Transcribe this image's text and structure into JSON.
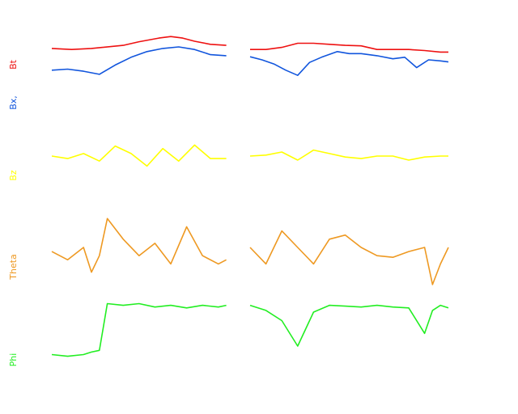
{
  "chart_data": {
    "type": "line",
    "panels": [
      {
        "series": [
          {
            "name": "Bt",
            "color": "#ee1111",
            "segments": [
              [
                [
                  0,
                  0.72
                ],
                [
                  0.05,
                  0.7
                ],
                [
                  0.1,
                  0.72
                ],
                [
                  0.18,
                  0.78
                ],
                [
                  0.22,
                  0.85
                ],
                [
                  0.27,
                  0.92
                ],
                [
                  0.3,
                  0.95
                ],
                [
                  0.33,
                  0.92
                ],
                [
                  0.36,
                  0.86
                ],
                [
                  0.4,
                  0.8
                ],
                [
                  0.44,
                  0.78
                ]
              ],
              [
                [
                  0.5,
                  0.7
                ],
                [
                  0.54,
                  0.7
                ],
                [
                  0.58,
                  0.74
                ],
                [
                  0.62,
                  0.82
                ],
                [
                  0.66,
                  0.82
                ],
                [
                  0.7,
                  0.8
                ],
                [
                  0.74,
                  0.78
                ],
                [
                  0.78,
                  0.77
                ],
                [
                  0.82,
                  0.7
                ],
                [
                  0.86,
                  0.7
                ],
                [
                  0.9,
                  0.7
                ],
                [
                  0.94,
                  0.68
                ],
                [
                  0.98,
                  0.65
                ],
                [
                  1.0,
                  0.65
                ]
              ]
            ]
          },
          {
            "name": "Bx,",
            "color": "#1155dd",
            "segments": [
              [
                [
                  0,
                  0.3
                ],
                [
                  0.04,
                  0.32
                ],
                [
                  0.08,
                  0.28
                ],
                [
                  0.12,
                  0.22
                ],
                [
                  0.16,
                  0.4
                ],
                [
                  0.2,
                  0.55
                ],
                [
                  0.24,
                  0.66
                ],
                [
                  0.28,
                  0.72
                ],
                [
                  0.32,
                  0.75
                ],
                [
                  0.36,
                  0.7
                ],
                [
                  0.4,
                  0.6
                ],
                [
                  0.44,
                  0.58
                ]
              ],
              [
                [
                  0.5,
                  0.56
                ],
                [
                  0.53,
                  0.5
                ],
                [
                  0.56,
                  0.42
                ],
                [
                  0.59,
                  0.3
                ],
                [
                  0.62,
                  0.2
                ],
                [
                  0.65,
                  0.45
                ],
                [
                  0.68,
                  0.55
                ],
                [
                  0.72,
                  0.66
                ],
                [
                  0.75,
                  0.62
                ],
                [
                  0.78,
                  0.62
                ],
                [
                  0.82,
                  0.58
                ],
                [
                  0.86,
                  0.52
                ],
                [
                  0.89,
                  0.55
                ],
                [
                  0.92,
                  0.35
                ],
                [
                  0.95,
                  0.5
                ],
                [
                  0.98,
                  0.48
                ],
                [
                  1.0,
                  0.46
                ]
              ]
            ]
          }
        ]
      },
      {
        "series": [
          {
            "name": "Bz",
            "color": "#ffff00",
            "segments": [
              [
                [
                  0,
                  0.5
                ],
                [
                  0.04,
                  0.45
                ],
                [
                  0.08,
                  0.55
                ],
                [
                  0.12,
                  0.4
                ],
                [
                  0.16,
                  0.7
                ],
                [
                  0.2,
                  0.55
                ],
                [
                  0.24,
                  0.3
                ],
                [
                  0.28,
                  0.65
                ],
                [
                  0.32,
                  0.4
                ],
                [
                  0.36,
                  0.72
                ],
                [
                  0.4,
                  0.45
                ],
                [
                  0.44,
                  0.45
                ]
              ],
              [
                [
                  0.5,
                  0.5
                ],
                [
                  0.54,
                  0.52
                ],
                [
                  0.58,
                  0.58
                ],
                [
                  0.62,
                  0.42
                ],
                [
                  0.66,
                  0.62
                ],
                [
                  0.7,
                  0.55
                ],
                [
                  0.74,
                  0.48
                ],
                [
                  0.78,
                  0.45
                ],
                [
                  0.82,
                  0.5
                ],
                [
                  0.86,
                  0.5
                ],
                [
                  0.9,
                  0.42
                ],
                [
                  0.94,
                  0.48
                ],
                [
                  0.98,
                  0.5
                ],
                [
                  1.0,
                  0.5
                ]
              ]
            ]
          }
        ]
      },
      {
        "series": [
          {
            "name": "Theta",
            "color": "#ee9922",
            "segments": [
              [
                [
                  0,
                  0.45
                ],
                [
                  0.04,
                  0.35
                ],
                [
                  0.08,
                  0.5
                ],
                [
                  0.1,
                  0.2
                ],
                [
                  0.12,
                  0.4
                ],
                [
                  0.14,
                  0.85
                ],
                [
                  0.18,
                  0.6
                ],
                [
                  0.22,
                  0.4
                ],
                [
                  0.26,
                  0.55
                ],
                [
                  0.3,
                  0.3
                ],
                [
                  0.34,
                  0.75
                ],
                [
                  0.38,
                  0.4
                ],
                [
                  0.42,
                  0.3
                ],
                [
                  0.44,
                  0.35
                ]
              ],
              [
                [
                  0.5,
                  0.5
                ],
                [
                  0.54,
                  0.3
                ],
                [
                  0.58,
                  0.7
                ],
                [
                  0.62,
                  0.5
                ],
                [
                  0.66,
                  0.3
                ],
                [
                  0.7,
                  0.6
                ],
                [
                  0.74,
                  0.65
                ],
                [
                  0.78,
                  0.5
                ],
                [
                  0.82,
                  0.4
                ],
                [
                  0.86,
                  0.38
                ],
                [
                  0.9,
                  0.45
                ],
                [
                  0.94,
                  0.5
                ],
                [
                  0.96,
                  0.05
                ],
                [
                  0.98,
                  0.3
                ],
                [
                  1.0,
                  0.5
                ]
              ]
            ]
          }
        ]
      },
      {
        "series": [
          {
            "name": "Phi",
            "color": "#22ee22",
            "segments": [
              [
                [
                  0,
                  0.3
                ],
                [
                  0.04,
                  0.28
                ],
                [
                  0.08,
                  0.3
                ],
                [
                  0.1,
                  0.33
                ],
                [
                  0.12,
                  0.35
                ],
                [
                  0.14,
                  0.9
                ],
                [
                  0.18,
                  0.88
                ],
                [
                  0.22,
                  0.9
                ],
                [
                  0.26,
                  0.86
                ],
                [
                  0.3,
                  0.88
                ],
                [
                  0.34,
                  0.85
                ],
                [
                  0.38,
                  0.88
                ],
                [
                  0.42,
                  0.86
                ],
                [
                  0.44,
                  0.88
                ]
              ],
              [
                [
                  0.5,
                  0.88
                ],
                [
                  0.54,
                  0.82
                ],
                [
                  0.58,
                  0.7
                ],
                [
                  0.62,
                  0.4
                ],
                [
                  0.66,
                  0.8
                ],
                [
                  0.7,
                  0.88
                ],
                [
                  0.74,
                  0.87
                ],
                [
                  0.78,
                  0.86
                ],
                [
                  0.82,
                  0.88
                ],
                [
                  0.86,
                  0.86
                ],
                [
                  0.9,
                  0.85
                ],
                [
                  0.94,
                  0.55
                ],
                [
                  0.96,
                  0.82
                ],
                [
                  0.98,
                  0.88
                ],
                [
                  1.0,
                  0.85
                ]
              ]
            ]
          }
        ]
      }
    ]
  }
}
